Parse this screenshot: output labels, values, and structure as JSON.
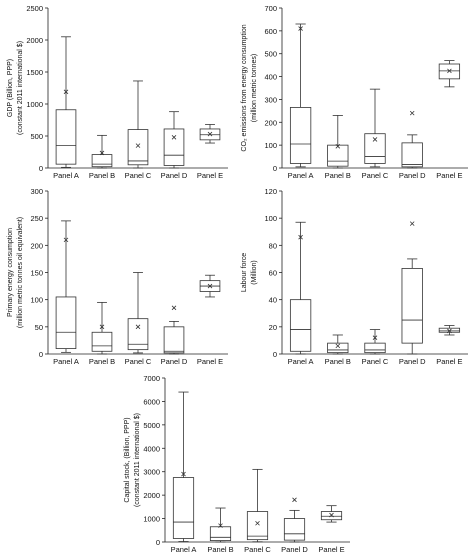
{
  "figure": {
    "panel_labels": [
      "Panel A",
      "Panel B",
      "Panel C",
      "Panel D",
      "Panel E"
    ]
  },
  "chart_data": [
    {
      "type": "box",
      "ylabel_lines": [
        "GDP (Billion, PPP)",
        "(constant 2011 international $)"
      ],
      "ylim": [
        0,
        2500
      ],
      "yticks": [
        0,
        500,
        1000,
        1500,
        2000,
        2500
      ],
      "categories": [
        "Panel A",
        "Panel B",
        "Panel C",
        "Panel D",
        "Panel E"
      ],
      "boxes": [
        {
          "min": 10,
          "q1": 60,
          "median": 350,
          "q3": 910,
          "max": 2050,
          "mean": 1190
        },
        {
          "min": 0,
          "q1": 20,
          "median": 60,
          "q3": 210,
          "max": 510,
          "mean": 235
        },
        {
          "min": 0,
          "q1": 50,
          "median": 110,
          "q3": 600,
          "max": 1360,
          "mean": 350
        },
        {
          "min": 0,
          "q1": 40,
          "median": 200,
          "q3": 610,
          "max": 880,
          "mean": 480
        },
        {
          "min": 390,
          "q1": 440,
          "median": 520,
          "q3": 610,
          "max": 680,
          "mean": 530
        }
      ]
    },
    {
      "type": "box",
      "ylabel_lines": [
        "CO₂ emissions from energy consumption",
        "(million metric tonnes)"
      ],
      "ylim": [
        0,
        700
      ],
      "yticks": [
        0,
        100,
        200,
        300,
        400,
        500,
        600,
        700
      ],
      "categories": [
        "Panel A",
        "Panel B",
        "Panel C",
        "Panel D",
        "Panel E"
      ],
      "boxes": [
        {
          "min": 5,
          "q1": 20,
          "median": 105,
          "q3": 265,
          "max": 630,
          "mean": 610
        },
        {
          "min": 0,
          "q1": 8,
          "median": 30,
          "q3": 100,
          "max": 230,
          "mean": 95
        },
        {
          "min": 5,
          "q1": 20,
          "median": 50,
          "q3": 150,
          "max": 345,
          "mean": 125
        },
        {
          "min": 0,
          "q1": 5,
          "median": 15,
          "q3": 110,
          "max": 145,
          "mean": 240
        },
        {
          "min": 355,
          "q1": 390,
          "median": 425,
          "q3": 455,
          "max": 470,
          "mean": 425
        }
      ]
    },
    {
      "type": "box",
      "ylabel_lines": [
        "Primary energy consumption",
        "(million metric tonnes oil equivalent)"
      ],
      "ylim": [
        0,
        300
      ],
      "yticks": [
        0,
        50,
        100,
        150,
        200,
        250,
        300
      ],
      "categories": [
        "Panel A",
        "Panel B",
        "Panel C",
        "Panel D",
        "Panel E"
      ],
      "boxes": [
        {
          "min": 3,
          "q1": 10,
          "median": 40,
          "q3": 105,
          "max": 245,
          "mean": 210
        },
        {
          "min": 0,
          "q1": 5,
          "median": 15,
          "q3": 40,
          "max": 95,
          "mean": 50
        },
        {
          "min": 2,
          "q1": 8,
          "median": 18,
          "q3": 65,
          "max": 150,
          "mean": 50
        },
        {
          "min": 0,
          "q1": 2,
          "median": 5,
          "q3": 50,
          "max": 60,
          "mean": 85
        },
        {
          "min": 105,
          "q1": 115,
          "median": 125,
          "q3": 135,
          "max": 145,
          "mean": 125
        }
      ]
    },
    {
      "type": "box",
      "ylabel_lines": [
        "Labour force",
        "(Million)"
      ],
      "ylim": [
        0,
        120
      ],
      "yticks": [
        0,
        20,
        40,
        60,
        80,
        100,
        120
      ],
      "categories": [
        "Panel A",
        "Panel B",
        "Panel C",
        "Panel D",
        "Panel E"
      ],
      "boxes": [
        {
          "min": 0,
          "q1": 2,
          "median": 18,
          "q3": 40,
          "max": 97,
          "mean": 86
        },
        {
          "min": 0,
          "q1": 1,
          "median": 3,
          "q3": 8,
          "max": 14,
          "mean": 6
        },
        {
          "min": 0,
          "q1": 1,
          "median": 3,
          "q3": 8,
          "max": 18,
          "mean": 12
        },
        {
          "min": 0,
          "q1": 8,
          "median": 25,
          "q3": 63,
          "max": 70,
          "mean": 96
        },
        {
          "min": 14,
          "q1": 16,
          "median": 17,
          "q3": 19,
          "max": 21,
          "mean": 17
        }
      ]
    },
    {
      "type": "box",
      "ylabel_lines": [
        "Capital stock, (Billion, PPP)",
        "(constant 2011 international $)"
      ],
      "ylim": [
        0,
        7000
      ],
      "yticks": [
        0,
        1000,
        2000,
        3000,
        4000,
        5000,
        6000,
        7000
      ],
      "categories": [
        "Panel A",
        "Panel B",
        "Panel C",
        "Panel D",
        "Panel E"
      ],
      "boxes": [
        {
          "min": 20,
          "q1": 150,
          "median": 850,
          "q3": 2750,
          "max": 6400,
          "mean": 2900
        },
        {
          "min": 0,
          "q1": 60,
          "median": 200,
          "q3": 650,
          "max": 1450,
          "mean": 700
        },
        {
          "min": 10,
          "q1": 100,
          "median": 250,
          "q3": 1300,
          "max": 3100,
          "mean": 800
        },
        {
          "min": 0,
          "q1": 80,
          "median": 350,
          "q3": 1000,
          "max": 1350,
          "mean": 1800
        },
        {
          "min": 850,
          "q1": 950,
          "median": 1100,
          "q3": 1300,
          "max": 1550,
          "mean": 1150
        }
      ]
    }
  ]
}
